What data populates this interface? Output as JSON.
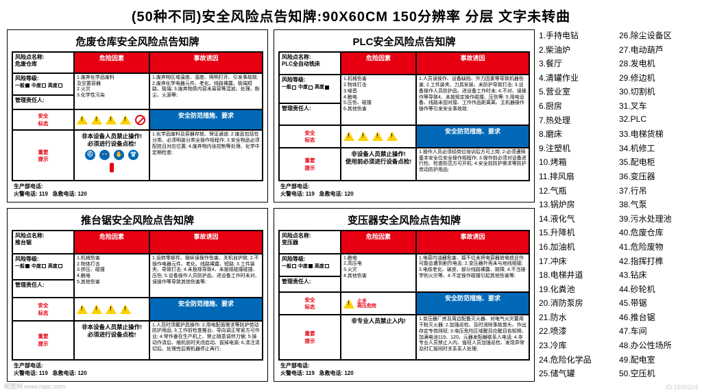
{
  "page_title": "(50种不同)安全风险点告知牌:90X60CM 150分辨率 分层 文字未转曲",
  "colors": {
    "red": "#e60012",
    "blue": "#0068b7",
    "yellow": "#fdd000",
    "black": "#000000",
    "white": "#ffffff"
  },
  "labels": {
    "risk_name": "风险点名称:",
    "risk_level": "风险等级:",
    "manager": "管理责任人:",
    "levels": "一般□ 中度□ 高度□",
    "risk_factor": "危险因素",
    "accident_cause": "事故诱因",
    "safety_sign": "安全标志",
    "measures": "安全防范措施、要求",
    "important": "重要",
    "tip": "提示",
    "tip_text1": "非本设备人员禁止操作!",
    "tip_text2": "必须进行设备点检!",
    "tip_text3": "非设备人员禁止操作!",
    "tip_text4": "使用前必须进行设备点检!",
    "tip_text5": "非专业人员禁止入内!",
    "phone_label": "生产部电话:",
    "fire_phone": "火警电话: 119",
    "rescue_phone": "急救电话: 120",
    "stop": "止步",
    "highv": "高压危险"
  },
  "cards": [
    {
      "title": "危废仓库安全风险点告知牌",
      "risk_name_value": "危废仓库",
      "level_checked": 0,
      "risk_factors": "1.废弃化学品废料\n及空置容器\n2.火灾\n3.化学性污染",
      "accident_cause": "1.废弃物区域温度、湿度、照明打开、引发事故故;\n2.废弃化学电器元件、老化、线路裸露、极端短路、极端;\n3.废弃物质内容未易容等混放、处理、粉尘、火源等;",
      "measures": "1.化学品废料及容器存放、保证通道;\n2.废品包括在分类、必须明装分类全操作规程作;\n3.安全物品必须配挂且对应位置;\n4.废弃物内张控制等处理、化学中定期检查;",
      "icon_set": "ppe",
      "tip_row": 0
    },
    {
      "title": "PLC安全风险点告知牌",
      "risk_name_value": "PLC全自动铣床",
      "level_checked": 2,
      "risk_factors": "1.机械伤害\n2.物体打击\n3.噪音\n4.触电\n5.压伤、碰撞\n6.其他伤害",
      "accident_cause": "1.人员误操作、设备缺陷、外力因素等导致机器伤害;\n2.工件装夹、刀具安装、未防护导致打击;\n3.设备操作人员防护品、进设备工作时未;\n4.不对、误操作等导致4、未按规定操作碰撞、压伤等;\n5.用电设备、线路未固对接、工作作品距离离、主机器操作操作等引发安全事故故;",
      "measures": "1.操作人员必须经岗位培训后方可上岗;\n2.必须遵照基本安全位安全操作规程作;\n3.操作前必须对设备进行检、检查防范方可开机;\n4.安全前防护需求等防护劳动防护用品;",
      "icon_set": "plain",
      "tip_row": 1
    },
    {
      "title": "推台锯安全风险点告知牌",
      "risk_name_value": "推台锯",
      "level_checked": 0,
      "risk_factors": "1.机械伤害\n2.物体打击\n3.挤压、碰撞\n4.触电\n5.其他伤害",
      "accident_cause": "1.运转零部件、操纵误操作伤害、关机自护故;\n2.不操作电器元件、老化、线路裸露、短路;\n3.工件装夹、导致打击;\n4.未按规导致4、未按规碰撞碰撞、压伤;\n5.设备操作人员防护品、进设备工作时未对、误操作等导致其他伤害等;",
      "measures": "1.人员时须戴护具操作;\n2.用电配面需求等防护劳动防护用品;\n3.工作前检查推台、导向调正常紧方可作业;\n4.常作垂在生产机上、禁止随意调伴刀锯;\n5.操动作清后、维机前时关闭启动、拔掉电源;\n6.清注清切后、处理完后需机器停止再行;",
      "icon_set": "plain",
      "tip_row": 0
    },
    {
      "title": "变压器安全风险点告知牌",
      "risk_name_value": "变压器",
      "level_checked": 1,
      "risk_factors": "1.触电\n2.高压电\n3.火灾\n4.其他伤害",
      "accident_cause": "1.电容内油器危害、接不位未将电容器放电就业作可能会遭到剧烈电击;\n2.变压器外壳未与地线相接;\n3.电缆老化、破皮、部分线路裸露、故障;\n4.不当操学别火灾等、4.不定操作碰撞引起其他伤害等;",
      "measures": "1.变压器厂房及周边配备灭火器、对电气火灾要用干粉灭火器;\n2.加强巡检、及时消除事故苗头、作出存定专岗排班;\n3.电压危险区域醒目应醒目告知牌、加满电池119、120、元器发配器联系人电话;\n4.非专业人员禁止入内、值班人员加强巡检、发现异常及时汇报同时关系系人处理;",
      "icon_set": "hv",
      "tip_row": 2
    }
  ],
  "index": [
    "手持电钻",
    "柴油炉",
    "餐厅",
    "清罐作业",
    "营业室",
    "厨房",
    "热处理",
    "磨床",
    "注塑机",
    "烤箱",
    "排风扇",
    "气瓶",
    "锅炉房",
    "液化气",
    "升降机",
    "加油机",
    "冲床",
    "电梯井道",
    "化粪池",
    "消防泵房",
    "防水",
    "喷漆",
    "冷库",
    "危险化学品",
    "储气罐",
    "除尘设备区",
    "电动葫芦",
    "发电机",
    "修边机",
    "切割机",
    "叉车",
    "PLC",
    "电梯货梯",
    "机修工",
    "配电柜",
    "变压器",
    "行吊",
    "气泵",
    "污水处理池",
    "危废仓库",
    "危险废物",
    "指挥打榫",
    "钻床",
    "砂轮机",
    "带锯",
    "推台锯",
    "车间",
    "办公性场所",
    "配电室",
    "空压机"
  ],
  "watermark_left": "昵图网  www.nipic.com",
  "watermark_right": "ID:1590104"
}
